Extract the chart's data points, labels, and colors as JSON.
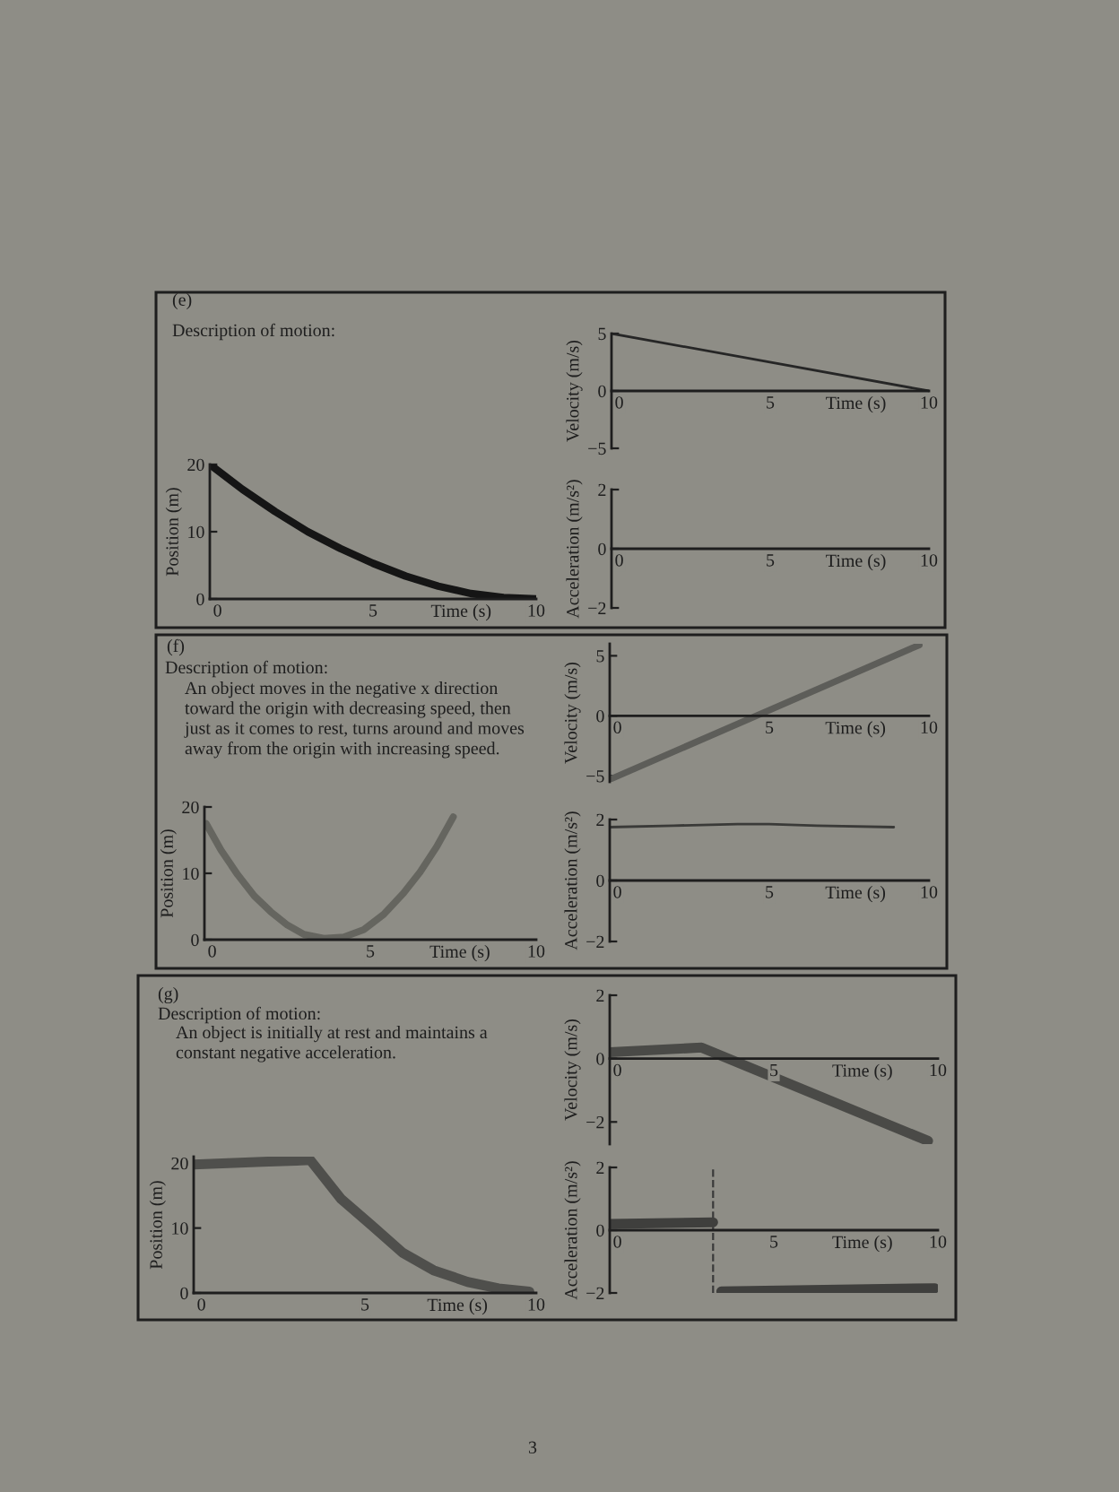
{
  "chart_data": [
    {
      "type": "other",
      "title": "(e)",
      "subtitle": "Description of motion:"
    },
    {
      "type": "line",
      "x": [
        0,
        10
      ],
      "values": [
        5,
        0
      ],
      "color": "#262626",
      "xlim": [
        0,
        10
      ],
      "ylim": [
        -5,
        5
      ],
      "xticks": [
        0,
        5,
        10
      ],
      "yticks": [
        -5,
        0,
        5
      ],
      "xlabel": "Time (s)",
      "ylabel": "Velocity (m/s)"
    },
    {
      "type": "line",
      "x": [
        0,
        1,
        2,
        3,
        4,
        5,
        6,
        7,
        8,
        9,
        10
      ],
      "values": [
        20,
        16.3,
        13,
        10,
        7.5,
        5.3,
        3.4,
        1.9,
        0.8,
        0.2,
        0
      ],
      "color": "#151515",
      "xlim": [
        0,
        10
      ],
      "ylim": [
        0,
        20
      ],
      "xticks": [
        0,
        5,
        10
      ],
      "yticks": [
        0,
        10,
        20
      ],
      "xlabel": "Time (s)",
      "ylabel": "Position (m)"
    },
    {
      "type": "line",
      "xlim": [
        0,
        10
      ],
      "ylim": [
        -2,
        2
      ],
      "xticks": [
        0,
        5,
        10
      ],
      "yticks": [
        -2,
        0,
        2
      ],
      "xlabel": "Time (s)",
      "ylabel": "Acceleration (m/s²)"
    },
    {
      "type": "other",
      "title": "(f)",
      "subtitle": "Description of motion:",
      "annotations": [
        "An object moves in the negative x direction\ntoward the origin with decreasing speed, then\njust as it comes to rest, turns around and moves\naway from the origin with increasing speed."
      ]
    },
    {
      "type": "line",
      "x": [
        0,
        9.7
      ],
      "values": [
        -5.3,
        5.9
      ],
      "color": "#5d5d59",
      "xlim": [
        0,
        10
      ],
      "ylim": [
        -5.5,
        6
      ],
      "xticks": [
        0,
        5,
        10
      ],
      "yticks": [
        -5,
        0,
        5
      ],
      "xlabel": "Time (s)",
      "ylabel": "Velocity (m/s)"
    },
    {
      "type": "line",
      "x": [
        0.05,
        0.5,
        1,
        1.5,
        2,
        2.5,
        3,
        3.6,
        4.2,
        4.8,
        5.4,
        6,
        6.5,
        7,
        7.5
      ],
      "values": [
        17.5,
        13.5,
        9.8,
        6.6,
        4.2,
        2.2,
        0.8,
        0.2,
        0.4,
        1.5,
        3.8,
        7,
        10.2,
        14,
        18.5
      ],
      "color": "#65655f",
      "xlim": [
        0,
        10
      ],
      "ylim": [
        0,
        20
      ],
      "xticks": [
        0,
        5,
        10
      ],
      "yticks": [
        0,
        10,
        20
      ],
      "xlabel": "Time (s)",
      "ylabel": "Position (m)"
    },
    {
      "type": "line",
      "x": [
        0,
        2,
        4,
        5,
        6.5,
        8.9
      ],
      "values": [
        1.75,
        1.8,
        1.85,
        1.85,
        1.8,
        1.75
      ],
      "color": "#3a3a38",
      "xlim": [
        0,
        10
      ],
      "ylim": [
        -2,
        2
      ],
      "xticks": [
        0,
        5,
        10
      ],
      "yticks": [
        -2,
        0,
        2
      ],
      "xlabel": "Time (s)",
      "ylabel": "Acceleration (m/s²)"
    },
    {
      "type": "other",
      "title": "(g)",
      "subtitle": "Description of motion:",
      "annotations": [
        "An object is initially at rest and maintains a\nconstant negative acceleration."
      ]
    },
    {
      "type": "line",
      "x": [
        0,
        2.8,
        9.7
      ],
      "values": [
        0.2,
        0.35,
        -2.6
      ],
      "color": "#4a4a47",
      "xlim": [
        0,
        10
      ],
      "ylim": [
        -2.7,
        2
      ],
      "xticks": [
        0,
        5,
        10
      ],
      "yticks": [
        -2,
        0,
        2
      ],
      "xlabel": "Time (s)",
      "ylabel": "Velocity (m/s)"
    },
    {
      "type": "line",
      "x": [
        0,
        1,
        2,
        3,
        3.4,
        4.3,
        5.2,
        6.1,
        7,
        8,
        8.9,
        9.8
      ],
      "values": [
        19.8,
        20,
        20.2,
        20.4,
        20.5,
        14.5,
        10.4,
        6.2,
        3.5,
        1.7,
        0.7,
        0.2
      ],
      "color": "#4f4f4c",
      "xlim": [
        0,
        10
      ],
      "ylim": [
        0,
        21
      ],
      "xticks": [
        0,
        5,
        10
      ],
      "yticks": [
        0,
        10,
        20
      ],
      "xlabel": "Time (s)",
      "ylabel": "Position (m)"
    },
    {
      "type": "line",
      "x": [
        0,
        3.15,
        3.25,
        3.4,
        9.9
      ],
      "values": [
        0.2,
        0.25,
        null,
        -1.95,
        -1.85
      ],
      "color": "#3f3f3d",
      "xlim": [
        0,
        10
      ],
      "ylim": [
        -2,
        2
      ],
      "xticks": [
        0,
        5,
        10
      ],
      "yticks": [
        -2,
        0,
        2
      ],
      "xlabel": "Time (s)",
      "ylabel": "Acceleration (m/s²)",
      "ref_lines": [
        {
          "axis": "x",
          "value": 3.15,
          "color": "#3a3a3a",
          "line_style": "dashed"
        }
      ]
    },
    {
      "type": "other",
      "annotations": [
        "3"
      ]
    }
  ]
}
